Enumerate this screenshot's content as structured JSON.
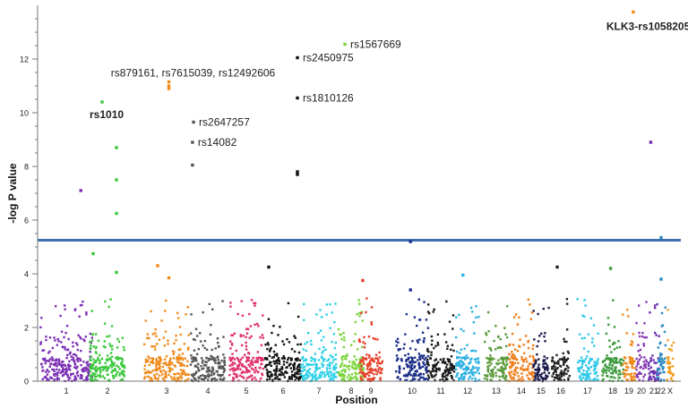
{
  "chart_data": {
    "type": "scatter",
    "title": "",
    "xlabel": "Position",
    "ylabel": "-log P value",
    "ylim": [
      0,
      14
    ],
    "yticks": [
      0,
      2,
      4,
      6,
      8,
      10,
      12
    ],
    "chromosomes": [
      "1",
      "2",
      "3",
      "4",
      "5",
      "6",
      "7",
      "8",
      "9",
      "10",
      "11",
      "12",
      "13",
      "14",
      "15",
      "16",
      "17",
      "18",
      "19",
      "20",
      "21",
      "22",
      "X"
    ],
    "chromosome_colors": [
      "#7a2fb5",
      "#3cc83c",
      "#f08a1a",
      "#555555",
      "#e0306a",
      "#111111",
      "#2fd0e6",
      "#7ad43a",
      "#e8402a",
      "#1c2f8a",
      "#1a1a1a",
      "#2ab0e0",
      "#5a9a3a",
      "#f07d1a",
      "#1a1a4a",
      "#222222",
      "#2fc8e8",
      "#3a9a3a",
      "#f08a1a",
      "#8a3ab5",
      "#6a2ab0",
      "#2a8ac0",
      "#f0a020"
    ],
    "threshold": 5.25,
    "snps": [
      {
        "chr": "1",
        "pos": 0.78,
        "value": 7.1
      },
      {
        "chr": "2",
        "pos": 0.35,
        "value": 10.4,
        "label": "rs1010",
        "bold": true
      },
      {
        "chr": "2",
        "pos": 0.75,
        "value": 8.7
      },
      {
        "chr": "2",
        "pos": 0.75,
        "value": 7.5
      },
      {
        "chr": "2",
        "pos": 0.75,
        "value": 6.25
      },
      {
        "chr": "3",
        "pos": 0.55,
        "value": 11.15,
        "label": "rs879161, rs7615039, rs12492606"
      },
      {
        "chr": "3",
        "pos": 0.55,
        "value": 11.0
      },
      {
        "chr": "3",
        "pos": 0.55,
        "value": 10.9
      },
      {
        "chr": "4",
        "pos": 0.08,
        "value": 9.65,
        "label": "rs2647257"
      },
      {
        "chr": "4",
        "pos": 0.05,
        "value": 8.9,
        "label": "rs14082"
      },
      {
        "chr": "4",
        "pos": 0.05,
        "value": 8.05
      },
      {
        "chr": "6",
        "pos": 0.9,
        "value": 12.05,
        "label": "rs2450975"
      },
      {
        "chr": "6",
        "pos": 0.9,
        "value": 10.55,
        "label": "rs1810126"
      },
      {
        "chr": "6",
        "pos": 0.9,
        "value": 7.8
      },
      {
        "chr": "6",
        "pos": 0.9,
        "value": 7.7
      },
      {
        "chr": "8",
        "pos": 0.25,
        "value": 12.55,
        "label": "rs1567669"
      },
      {
        "chr": "10",
        "pos": 0.45,
        "value": 5.2
      },
      {
        "chr": "19",
        "pos": 0.85,
        "value": 13.75,
        "label": "KLK3-rs1058205",
        "bold": true
      },
      {
        "chr": "21",
        "pos": 0.2,
        "value": 8.9
      },
      {
        "chr": "22",
        "pos": 0.5,
        "value": 5.35
      },
      {
        "chr": "2",
        "pos": 0.1,
        "value": 4.75
      },
      {
        "chr": "2",
        "pos": 0.75,
        "value": 4.05
      },
      {
        "chr": "3",
        "pos": 0.3,
        "value": 4.3
      },
      {
        "chr": "3",
        "pos": 0.55,
        "value": 3.85
      },
      {
        "chr": "6",
        "pos": 0.1,
        "value": 4.25
      },
      {
        "chr": "9",
        "pos": 0.15,
        "value": 3.75
      },
      {
        "chr": "10",
        "pos": 0.45,
        "value": 3.4
      },
      {
        "chr": "12",
        "pos": 0.3,
        "value": 3.95
      },
      {
        "chr": "16",
        "pos": 0.3,
        "value": 4.25
      },
      {
        "chr": "18",
        "pos": 0.4,
        "value": 4.2
      },
      {
        "chr": "22",
        "pos": 0.5,
        "value": 3.8
      }
    ]
  }
}
